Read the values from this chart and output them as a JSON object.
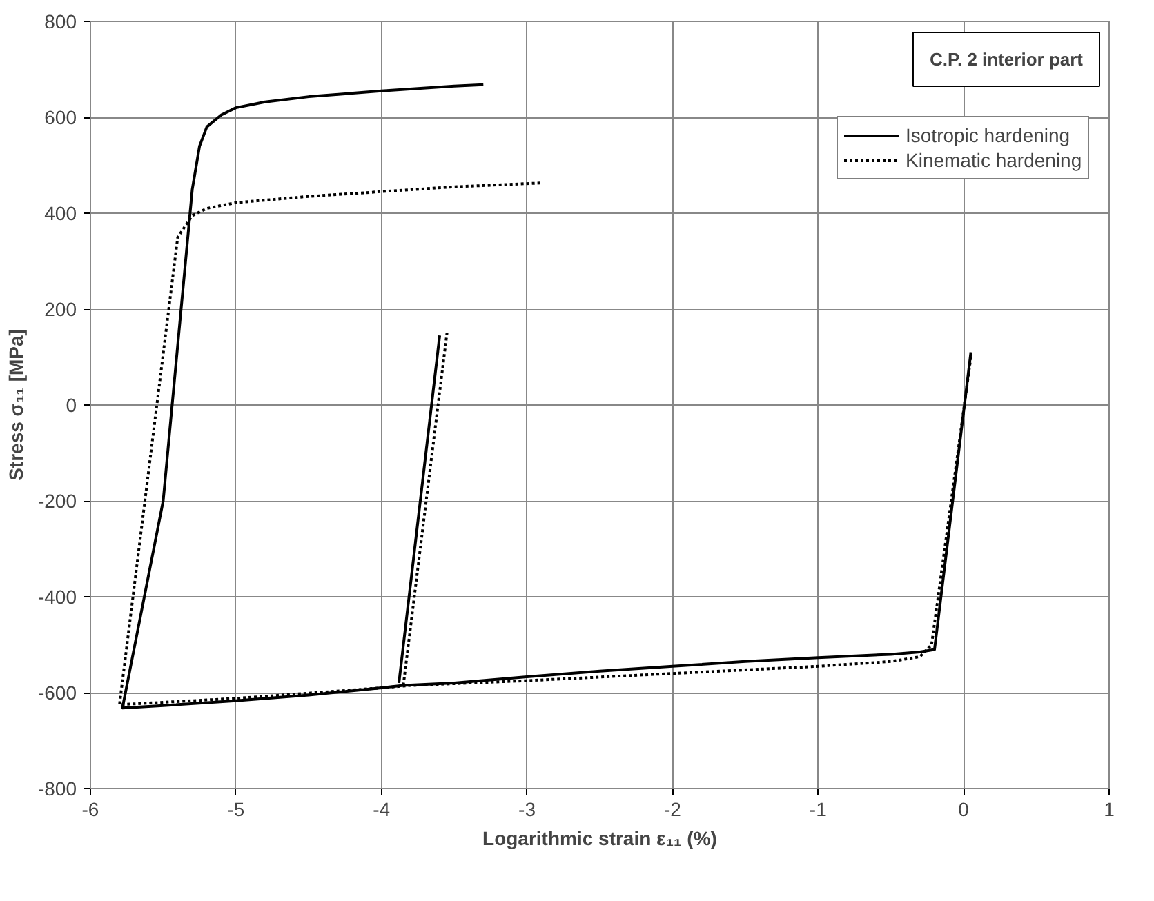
{
  "chart_data": {
    "type": "line",
    "xlabel": "Logarithmic strain ε₁₁ (%)",
    "ylabel": "Stress σ₁₁ [MPa]",
    "annotations": [
      "C.P. 2 interior part"
    ],
    "series": [
      {
        "name": "Isotropic hardening",
        "color": "#000000",
        "line_style": "solid",
        "x": [
          0.05,
          -0.2,
          -0.3,
          -0.5,
          -1,
          -1.5,
          -2,
          -2.5,
          -3,
          -3.5,
          -3.85,
          -4,
          -4.5,
          -5,
          -5.5,
          -5.78,
          -5.5,
          -5.3,
          -5.25,
          -5.2,
          -5.1,
          -5,
          -4.8,
          -4.5,
          -4,
          -3.5,
          -3.3
        ],
        "values": [
          110,
          -510,
          -515,
          -520,
          -527,
          -535,
          -545,
          -555,
          -567,
          -580,
          -585,
          -590,
          -605,
          -617,
          -627,
          -632,
          -200,
          450,
          540,
          580,
          605,
          620,
          632,
          643,
          655,
          665,
          668
        ]
      },
      {
        "color": "#000000",
        "line_style": "solid",
        "x": [
          -3.88,
          -3.6
        ],
        "values": [
          -580,
          145
        ]
      },
      {
        "name": "Kinematic hardening",
        "color": "#000000",
        "line_style": "dotted",
        "x": [
          0.05,
          -0.22,
          -0.3,
          -0.5,
          -1,
          -2,
          -3,
          -3.8,
          -4,
          -5,
          -5.8,
          -5.4,
          -5.3,
          -5.2,
          -5,
          -4.5,
          -4,
          -3.5,
          -2.9
        ],
        "values": [
          100,
          -500,
          -525,
          -535,
          -545,
          -560,
          -575,
          -585,
          -590,
          -612,
          -625,
          350,
          395,
          410,
          422,
          435,
          445,
          455,
          463
        ]
      },
      {
        "color": "#000000",
        "line_style": "dotted",
        "x": [
          -3.85,
          -3.55
        ],
        "values": [
          -585,
          150
        ]
      }
    ],
    "xlim": [
      -6,
      1
    ],
    "xticks": [
      -6,
      -5,
      -4,
      -3,
      -2,
      -1,
      0,
      1
    ],
    "ylim": [
      -800,
      800
    ],
    "yticks": [
      -800,
      -600,
      -400,
      -200,
      0,
      200,
      400,
      600,
      800
    ],
    "grid": true,
    "legend": "top right"
  }
}
